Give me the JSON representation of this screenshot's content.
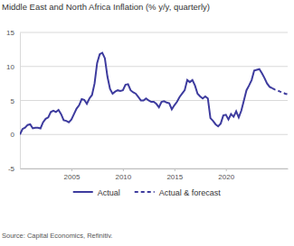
{
  "chart_data": {
    "type": "line",
    "title": "Middle East and North Africa Inflation (% y/y, quarterly)",
    "source": "Source: Capital Economics, Refinitiv.",
    "x": [
      2000,
      2000.25,
      2000.5,
      2000.75,
      2001,
      2001.25,
      2001.5,
      2001.75,
      2002,
      2002.25,
      2002.5,
      2002.75,
      2003,
      2003.25,
      2003.5,
      2003.75,
      2004,
      2004.25,
      2004.5,
      2004.75,
      2005,
      2005.25,
      2005.5,
      2005.75,
      2006,
      2006.25,
      2006.5,
      2006.75,
      2007,
      2007.25,
      2007.5,
      2007.75,
      2008,
      2008.25,
      2008.5,
      2008.75,
      2009,
      2009.25,
      2009.5,
      2009.75,
      2010,
      2010.25,
      2010.5,
      2010.75,
      2011,
      2011.25,
      2011.5,
      2011.75,
      2012,
      2012.25,
      2012.5,
      2012.75,
      2013,
      2013.25,
      2013.5,
      2013.75,
      2014,
      2014.25,
      2014.5,
      2014.75,
      2015,
      2015.25,
      2015.5,
      2015.75,
      2016,
      2016.25,
      2016.5,
      2016.75,
      2017,
      2017.25,
      2017.5,
      2017.75,
      2018,
      2018.25,
      2018.5,
      2018.75,
      2019,
      2019.25,
      2019.5,
      2019.75,
      2020,
      2020.25,
      2020.5,
      2020.75,
      2021,
      2021.25,
      2021.5,
      2021.75,
      2022,
      2022.25,
      2022.5,
      2022.75,
      2023,
      2023.25,
      2023.5,
      2023.75,
      2024,
      2024.25,
      2024.5,
      2024.75,
      2025,
      2025.25,
      2025.5,
      2025.75,
      2026
    ],
    "series": [
      {
        "name": "Actual",
        "color": "#3d3b9e",
        "line_style": "solid",
        "values": [
          0,
          0.8,
          1.0,
          1.4,
          1.5,
          0.9,
          1.0,
          1.0,
          0.9,
          1.8,
          2.3,
          2.5,
          3.3,
          3.5,
          3.3,
          3.6,
          3.0,
          2.1,
          2.0,
          1.8,
          2.2,
          3.0,
          3.8,
          4.3,
          5.2,
          5.1,
          4.5,
          5.3,
          5.8,
          7.5,
          10.5,
          11.8,
          12.0,
          11.2,
          8.5,
          6.7,
          6.0,
          6.3,
          6.5,
          6.4,
          6.5,
          7.3,
          7.4,
          6.5,
          6.2,
          6.0,
          5.5,
          5.0,
          5.0,
          5.3,
          5.0,
          4.8,
          4.8,
          4.5,
          4.0,
          4.8,
          4.9,
          4.7,
          4.6,
          3.7,
          4.3,
          4.8,
          5.5,
          6.0,
          6.5,
          8.0,
          7.7,
          8.0,
          7.2,
          6.0,
          5.6,
          5.3,
          5.6,
          5.3,
          2.4,
          2.0,
          1.5,
          1.2,
          1.6,
          2.8,
          2.9,
          2.2,
          3.0,
          2.6,
          3.4,
          2.5,
          3.5,
          5.0,
          6.5,
          7.2,
          8.0,
          9.4,
          9.5,
          9.6,
          9.0,
          8.3,
          7.5,
          7.0,
          6.8,
          null,
          null,
          null,
          null,
          null,
          null
        ]
      },
      {
        "name": "Actual & forecast",
        "color": "#3d3b9e",
        "line_style": "dashed",
        "values": [
          null,
          null,
          null,
          null,
          null,
          null,
          null,
          null,
          null,
          null,
          null,
          null,
          null,
          null,
          null,
          null,
          null,
          null,
          null,
          null,
          null,
          null,
          null,
          null,
          null,
          null,
          null,
          null,
          null,
          null,
          null,
          null,
          null,
          null,
          null,
          null,
          null,
          null,
          null,
          null,
          null,
          null,
          null,
          null,
          null,
          null,
          null,
          null,
          null,
          null,
          null,
          null,
          null,
          null,
          null,
          null,
          null,
          null,
          null,
          null,
          null,
          null,
          null,
          null,
          null,
          null,
          null,
          null,
          null,
          null,
          null,
          null,
          null,
          null,
          null,
          null,
          null,
          null,
          null,
          null,
          null,
          null,
          null,
          null,
          null,
          null,
          null,
          null,
          null,
          null,
          null,
          null,
          null,
          null,
          null,
          null,
          null,
          null,
          6.8,
          6.6,
          6.5,
          6.3,
          6.2,
          6.0,
          5.9
        ]
      }
    ],
    "xlim": [
      2000,
      2026
    ],
    "xticks": [
      2005,
      2010,
      2015,
      2020
    ],
    "ylim": [
      -5,
      15
    ],
    "yticks": [
      -5,
      0,
      5,
      10,
      15
    ],
    "grid": true,
    "legend": "bottom"
  }
}
